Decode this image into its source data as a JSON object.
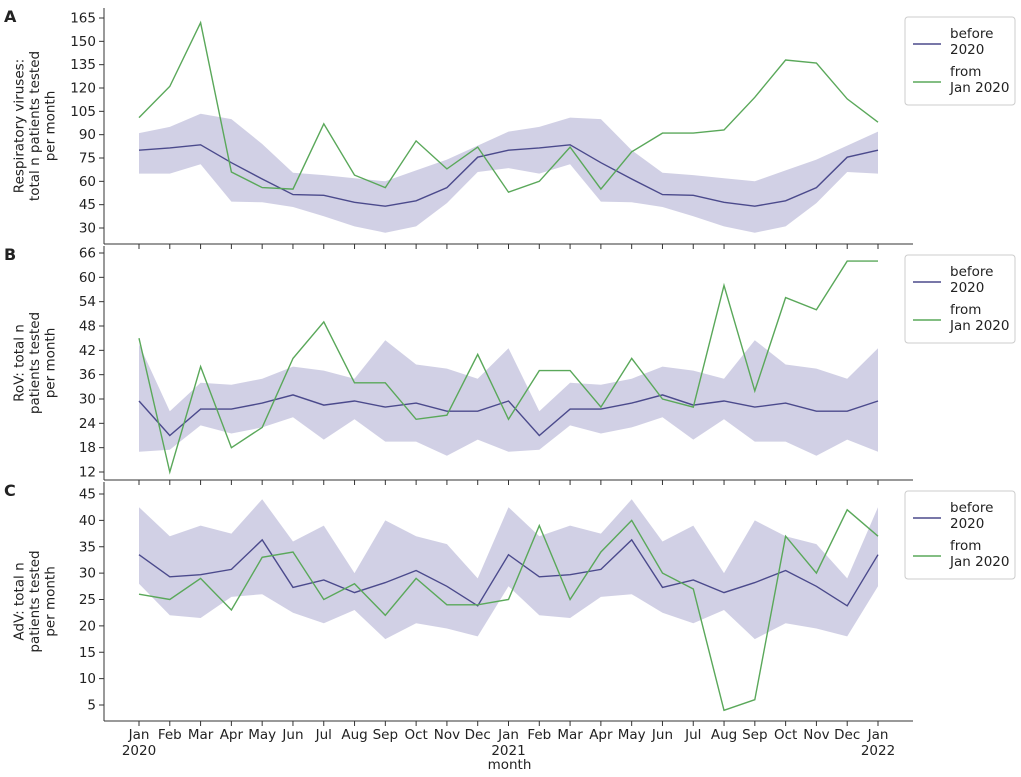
{
  "colors": {
    "before": "#4b4a8c",
    "band": "#c9c8e0",
    "from": "#5aa85a",
    "axis": "#333333"
  },
  "chart_data": [
    {
      "type": "line",
      "panel": "A",
      "ylabel_lines": [
        "Respiratory viruses:",
        "total n patients tested",
        "per month"
      ],
      "ylim": [
        22,
        168
      ],
      "yticks": [
        30,
        45,
        60,
        75,
        90,
        105,
        120,
        135,
        150,
        165
      ],
      "legend": [
        "before\n2020",
        "from\nJan 2020"
      ],
      "series": [
        {
          "name": "before 2020",
          "values": [
            80,
            81.5,
            83.5,
            72,
            61.5,
            51.5,
            51,
            46.5,
            44,
            47.5,
            56,
            75.5,
            80,
            81.5,
            83.5,
            72,
            61.5,
            51.5,
            51,
            46.5,
            44,
            47.5,
            56,
            75.5,
            80
          ],
          "band_low": [
            65,
            65,
            71,
            47,
            46.5,
            43.5,
            37.5,
            31,
            27,
            31,
            46,
            66,
            68.5,
            65,
            71,
            47,
            46.5,
            43.5,
            37.5,
            31,
            27,
            31,
            46,
            66,
            65
          ],
          "band_high": [
            91,
            95,
            103.5,
            100,
            84,
            65.5,
            64,
            62,
            60,
            67,
            74,
            83,
            92,
            95,
            101,
            100,
            80,
            65.5,
            64,
            62,
            60,
            67,
            74,
            83,
            92
          ]
        },
        {
          "name": "from Jan 2020",
          "values": [
            101,
            121,
            162,
            66,
            56,
            55,
            97,
            64,
            56,
            86,
            68,
            82,
            53,
            60,
            82,
            55,
            79,
            91,
            91,
            93,
            114,
            138,
            136,
            113,
            98
          ]
        }
      ]
    },
    {
      "type": "line",
      "panel": "B",
      "ylabel_lines": [
        "RoV: total n",
        "patients tested",
        "per month"
      ],
      "ylim": [
        10,
        67
      ],
      "yticks": [
        12,
        18,
        24,
        30,
        36,
        42,
        48,
        54,
        60,
        66
      ],
      "legend": [
        "before\n2020",
        "from\nJan 2020"
      ],
      "series": [
        {
          "name": "before 2020",
          "values": [
            29.5,
            21,
            27.5,
            27.5,
            29,
            31,
            28.5,
            29.5,
            28,
            29,
            27,
            27,
            29.5,
            21,
            27.5,
            27.5,
            29,
            31,
            28.5,
            29.5,
            28,
            29,
            27,
            27,
            29.5
          ],
          "band_low": [
            17,
            17.5,
            23.5,
            21.5,
            23,
            25.5,
            20,
            25,
            19.5,
            19.5,
            16,
            20,
            17,
            17.5,
            23.5,
            21.5,
            23,
            25.5,
            20,
            25,
            19.5,
            19.5,
            16,
            20,
            17
          ],
          "band_high": [
            43.5,
            27,
            34,
            33.5,
            35,
            38,
            37,
            35,
            44.5,
            38.5,
            37.5,
            35,
            42.5,
            27,
            34,
            33.5,
            35,
            38,
            37,
            35,
            44.5,
            38.5,
            37.5,
            35,
            42.5
          ]
        },
        {
          "name": "from Jan 2020",
          "values": [
            45,
            12,
            38,
            18,
            23,
            40,
            49,
            34,
            34,
            25,
            26,
            41,
            25,
            37,
            37,
            28,
            40,
            30,
            28,
            58,
            32,
            55,
            52,
            64,
            64
          ]
        }
      ]
    },
    {
      "type": "line",
      "panel": "C",
      "xlabel": "month",
      "ylabel_lines": [
        "AdV: total n",
        "patients tested",
        "per month"
      ],
      "ylim": [
        3,
        46
      ],
      "yticks": [
        5,
        10,
        15,
        20,
        25,
        30,
        35,
        40,
        45
      ],
      "legend": [
        "before\n2020",
        "from\nJan 2020"
      ],
      "categories": [
        "Jan\n2020",
        "Feb",
        "Mar",
        "Apr",
        "May",
        "Jun",
        "Jul",
        "Aug",
        "Sep",
        "Oct",
        "Nov",
        "Dec",
        "Jan\n2021",
        "Feb",
        "Mar",
        "Apr",
        "May",
        "Jun",
        "Jul",
        "Aug",
        "Sep",
        "Oct",
        "Nov",
        "Dec",
        "Jan\n2022"
      ],
      "series": [
        {
          "name": "before 2020",
          "values": [
            33.5,
            29.3,
            29.7,
            30.7,
            36.3,
            27.3,
            28.7,
            26.3,
            28.2,
            30.5,
            27.5,
            23.8,
            33.5,
            29.3,
            29.7,
            30.7,
            36.3,
            27.3,
            28.7,
            26.3,
            28.2,
            30.5,
            27.5,
            23.8,
            33.5
          ],
          "band_low": [
            28,
            22,
            21.5,
            25.5,
            26,
            22.5,
            20.5,
            23,
            17.5,
            20.5,
            19.5,
            18,
            27.5,
            22,
            21.5,
            25.5,
            26,
            22.5,
            20.5,
            23,
            17.5,
            20.5,
            19.5,
            18,
            27.5
          ],
          "band_high": [
            42.5,
            37,
            39,
            37.5,
            44,
            36,
            39,
            30,
            40,
            37,
            35.5,
            29,
            42.5,
            37,
            39,
            37.5,
            44,
            36,
            39,
            30,
            40,
            37,
            35.5,
            29,
            42.5
          ]
        },
        {
          "name": "from Jan 2020",
          "values": [
            26,
            25,
            29,
            23,
            33,
            34,
            25,
            28,
            22,
            29,
            24,
            24,
            25,
            39,
            25,
            34,
            40,
            30,
            27,
            4,
            6,
            37,
            30,
            42,
            37
          ]
        }
      ]
    }
  ]
}
